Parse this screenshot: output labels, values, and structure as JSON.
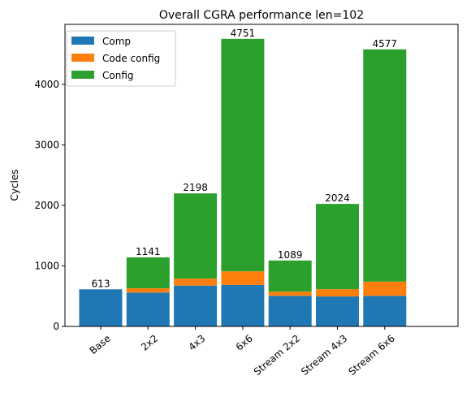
{
  "chart_data": {
    "type": "bar",
    "stacked": true,
    "title": "Overall CGRA performance len=102",
    "xlabel": "",
    "ylabel": "Cycles",
    "ylim": [
      0,
      4990
    ],
    "yticks": [
      0,
      1000,
      2000,
      3000,
      4000
    ],
    "categories": [
      "Base",
      "2x2",
      "4x3",
      "6x6",
      "Stream 2x2",
      "Stream 4x3",
      "Stream 6x6"
    ],
    "series": [
      {
        "name": "Comp",
        "color": "#1f77b4",
        "values": [
          613,
          560,
          675,
          685,
          505,
          495,
          505
        ]
      },
      {
        "name": "Code config",
        "color": "#ff7f0e",
        "values": [
          0,
          70,
          115,
          225,
          70,
          120,
          235
        ]
      },
      {
        "name": "Config",
        "color": "#2ca02c",
        "values": [
          0,
          511,
          1408,
          3841,
          514,
          1409,
          3837
        ]
      }
    ],
    "totals": [
      613,
      1141,
      2198,
      4751,
      1089,
      2024,
      4577
    ],
    "legend_position": "top-left",
    "grid": false
  }
}
